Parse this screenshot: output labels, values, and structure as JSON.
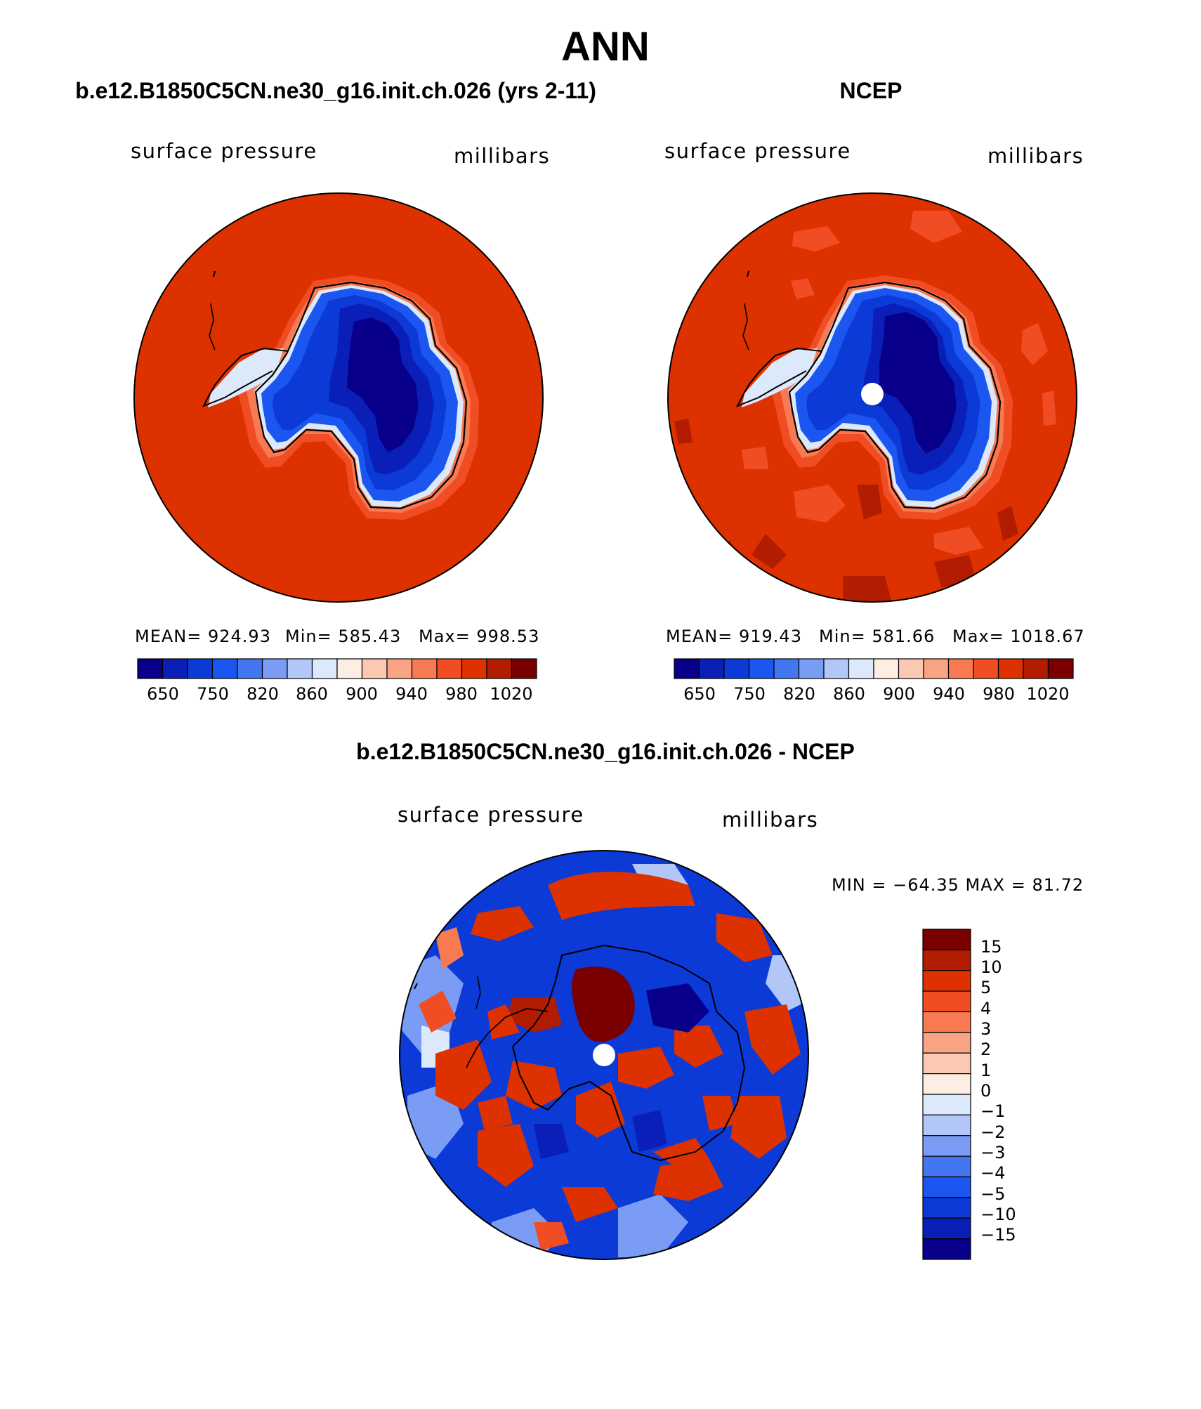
{
  "figure": {
    "season": "ANN",
    "palette_abs": [
      "#08008a",
      "#0a1fb8",
      "#0b3ad7",
      "#1c56f0",
      "#4576f2",
      "#7a9cf5",
      "#b2c7f8",
      "#dbe9fb",
      "#fdeee3",
      "#fbc9b3",
      "#f8a484",
      "#f77a52",
      "#f04d24",
      "#dd3100",
      "#b21c00",
      "#7a0000"
    ],
    "palette_diff": [
      "#08008a",
      "#0a1fb8",
      "#0b3ad7",
      "#1c56f0",
      "#4576f2",
      "#7a9cf5",
      "#b2c7f8",
      "#dbe9fb",
      "#fdeee3",
      "#fbc9b3",
      "#f8a484",
      "#f77a52",
      "#f04d24",
      "#dd3100",
      "#b21c00",
      "#7a0000"
    ],
    "panels": [
      {
        "title": "b.e12.B1850C5CN.ne30_g16.init.ch.026 (yrs 2-11)",
        "left_label": "surface pressure",
        "right_label": "millibars",
        "mean": "MEAN=  924.93",
        "min": "Min=  585.43",
        "max": "Max=  998.53",
        "ticks": [
          "650",
          "750",
          "820",
          "860",
          "900",
          "940",
          "980",
          "1020"
        ]
      },
      {
        "title": "NCEP",
        "left_label": "surface pressure",
        "right_label": "millibars",
        "mean": "MEAN=  919.43",
        "min": "Min=  581.66",
        "max": "Max=  1018.67",
        "ticks": [
          "650",
          "750",
          "820",
          "860",
          "900",
          "940",
          "980",
          "1020"
        ]
      },
      {
        "title": "b.e12.B1850C5CN.ne30_g16.init.ch.026 - NCEP",
        "left_label": "surface pressure",
        "right_label": "millibars",
        "minmax": "MIN = −64.35 MAX =   81.72",
        "ticks": [
          "15",
          "10",
          "5",
          "4",
          "3",
          "2",
          "1",
          "0",
          "−1",
          "−2",
          "−3",
          "−4",
          "−5",
          "−10",
          "−15"
        ]
      }
    ]
  }
}
